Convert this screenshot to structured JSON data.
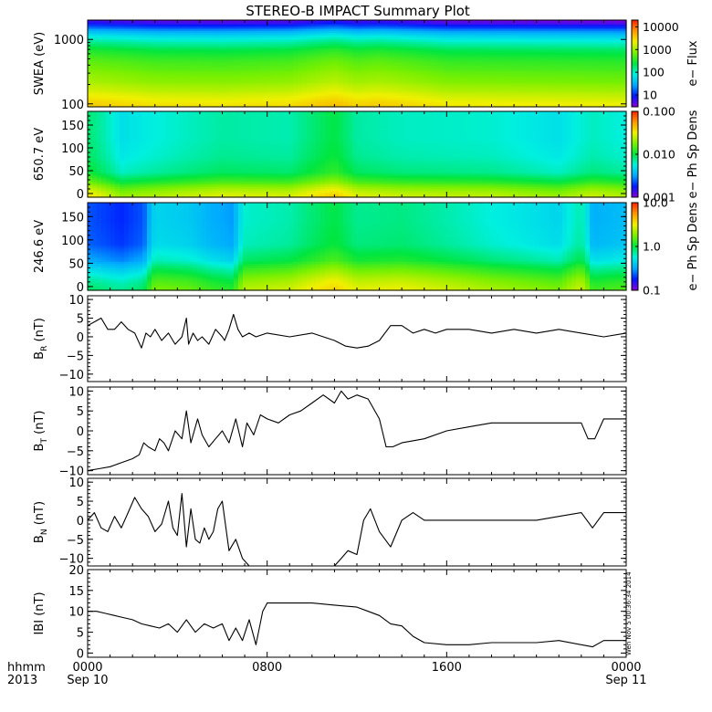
{
  "title": "STEREO-B IMPACT Summary Plot",
  "stamp": "Wen Nov 5 00:36:34 2014",
  "time_axis": {
    "row_label_1": "hhmm",
    "row_label_2": "2013",
    "ticks": [
      {
        "hours": 0,
        "time": "0000",
        "date": "Sep 10"
      },
      {
        "hours": 8,
        "time": "0800",
        "date": ""
      },
      {
        "hours": 16,
        "time": "1600",
        "date": ""
      },
      {
        "hours": 24,
        "time": "0000",
        "date": "Sep 11"
      }
    ],
    "range_hours": [
      0,
      24
    ]
  },
  "colors": {
    "spectrum": [
      "#8a00d8",
      "#0018ff",
      "#00a8ff",
      "#00f0e0",
      "#00e640",
      "#7af000",
      "#f0f000",
      "#ff9800",
      "#ff2000"
    ]
  },
  "chart_data": [
    {
      "type": "heatmap",
      "name": "swea",
      "ylabel": "SWEA (eV)",
      "yscale": "log",
      "ylim": [
        90,
        2000
      ],
      "yticks": [
        {
          "v": 100,
          "label": "100"
        },
        {
          "v": 1000,
          "label": "1000"
        }
      ],
      "colorbar": {
        "label": "e− Flux",
        "scale": "log",
        "range": [
          3,
          20000
        ],
        "ticks": [
          {
            "v": 10,
            "label": "10"
          },
          {
            "v": 100,
            "label": "100"
          },
          {
            "v": 1000,
            "label": "1000"
          },
          {
            "v": 10000,
            "label": "10000"
          }
        ]
      },
      "profile": [
        {
          "v": 100,
          "z": 2600
        },
        {
          "v": 120,
          "z": 2000
        },
        {
          "v": 160,
          "z": 1300
        },
        {
          "v": 220,
          "z": 850
        },
        {
          "v": 350,
          "z": 550
        },
        {
          "v": 550,
          "z": 330
        },
        {
          "v": 800,
          "z": 150
        },
        {
          "v": 1000,
          "z": 80
        },
        {
          "v": 1250,
          "z": 35
        },
        {
          "v": 1500,
          "z": 14
        },
        {
          "v": 1750,
          "z": 6
        },
        {
          "v": 2000,
          "z": 4
        }
      ],
      "time_modulation": [
        {
          "h": 0,
          "f": 1.3
        },
        {
          "h": 1,
          "f": 1.2
        },
        {
          "h": 3,
          "f": 1.0
        },
        {
          "h": 6,
          "f": 0.95
        },
        {
          "h": 9,
          "f": 1.05
        },
        {
          "h": 11,
          "f": 1.5
        },
        {
          "h": 12,
          "f": 1.2
        },
        {
          "h": 13,
          "f": 1.3
        },
        {
          "h": 16,
          "f": 0.9
        },
        {
          "h": 20,
          "f": 0.85
        },
        {
          "h": 24,
          "f": 0.8
        }
      ]
    },
    {
      "type": "heatmap",
      "name": "pad650",
      "ylabel": "650.7 eV",
      "yscale": "linear",
      "ylim": [
        -8,
        180
      ],
      "yticks": [
        {
          "v": 0,
          "label": "0"
        },
        {
          "v": 50,
          "label": "50"
        },
        {
          "v": 100,
          "label": "100"
        },
        {
          "v": 150,
          "label": "150"
        }
      ],
      "colorbar": {
        "label": "e− Ph Sp Dens",
        "scale": "log",
        "range": [
          0.001,
          0.1
        ],
        "ticks": [
          {
            "v": 0.001,
            "label": "0.001"
          },
          {
            "v": 0.01,
            "label": "0.010"
          },
          {
            "v": 0.1,
            "label": "0.100"
          }
        ]
      },
      "profile": [
        {
          "v": -8,
          "z": 0.03
        },
        {
          "v": 10,
          "z": 0.022
        },
        {
          "v": 25,
          "z": 0.014
        },
        {
          "v": 45,
          "z": 0.009
        },
        {
          "v": 80,
          "z": 0.0075
        },
        {
          "v": 120,
          "z": 0.007
        },
        {
          "v": 180,
          "z": 0.007
        }
      ],
      "time_modulation": [
        {
          "h": 0,
          "f": 1.2
        },
        {
          "h": 1.5,
          "f": 0.7
        },
        {
          "h": 3,
          "f": 0.8
        },
        {
          "h": 6,
          "f": 1.0
        },
        {
          "h": 9,
          "f": 0.95
        },
        {
          "h": 11,
          "f": 1.4
        },
        {
          "h": 12,
          "f": 1.0
        },
        {
          "h": 14,
          "f": 0.9
        },
        {
          "h": 18,
          "f": 0.85
        },
        {
          "h": 21,
          "f": 0.7
        },
        {
          "h": 22.5,
          "f": 0.9
        },
        {
          "h": 24,
          "f": 0.8
        }
      ]
    },
    {
      "type": "heatmap",
      "name": "pad246",
      "ylabel": "246.6 eV",
      "yscale": "linear",
      "ylim": [
        -8,
        180
      ],
      "yticks": [
        {
          "v": 0,
          "label": "0"
        },
        {
          "v": 50,
          "label": "50"
        },
        {
          "v": 100,
          "label": "100"
        },
        {
          "v": 150,
          "label": "150"
        }
      ],
      "colorbar": {
        "label": "e− Ph Sp Dens",
        "scale": "log",
        "range": [
          0.1,
          10
        ],
        "ticks": [
          {
            "v": 0.1,
            "label": "0.1"
          },
          {
            "v": 1,
            "label": "1.0"
          },
          {
            "v": 10,
            "label": "10.0"
          }
        ]
      },
      "profile": [
        {
          "v": -8,
          "z": 3.0
        },
        {
          "v": 10,
          "z": 2.5
        },
        {
          "v": 30,
          "z": 1.8
        },
        {
          "v": 55,
          "z": 1.1
        },
        {
          "v": 90,
          "z": 0.8
        },
        {
          "v": 140,
          "z": 0.75
        },
        {
          "v": 180,
          "z": 0.75
        }
      ],
      "time_modulation": [
        {
          "h": 0,
          "f": 0.3
        },
        {
          "h": 1.5,
          "f": 0.25
        },
        {
          "h": 2.5,
          "f": 0.3
        },
        {
          "h": 3,
          "f": 0.6
        },
        {
          "h": 4.5,
          "f": 0.55
        },
        {
          "h": 5.5,
          "f": 0.45
        },
        {
          "h": 6.5,
          "f": 0.4
        },
        {
          "h": 7,
          "f": 0.8
        },
        {
          "h": 9,
          "f": 0.9
        },
        {
          "h": 11,
          "f": 1.3
        },
        {
          "h": 12,
          "f": 1.0
        },
        {
          "h": 14,
          "f": 1.05
        },
        {
          "h": 18,
          "f": 0.75
        },
        {
          "h": 21,
          "f": 0.6
        },
        {
          "h": 22,
          "f": 0.9
        },
        {
          "h": 22.5,
          "f": 0.45
        },
        {
          "h": 24,
          "f": 0.5
        }
      ]
    },
    {
      "type": "line",
      "name": "br",
      "ylabel_main": "B",
      "ylabel_sub": "R",
      "ylabel_unit": " (nT)",
      "ylim": [
        -12,
        11
      ],
      "yticks": [
        {
          "v": -10,
          "label": "−10"
        },
        {
          "v": -5,
          "label": "−5"
        },
        {
          "v": 0,
          "label": "0"
        },
        {
          "v": 5,
          "label": "5"
        },
        {
          "v": 10,
          "label": "10"
        }
      ],
      "x": [
        0,
        0.3,
        0.6,
        0.9,
        1.2,
        1.5,
        1.8,
        2.1,
        2.4,
        2.6,
        2.8,
        3.0,
        3.3,
        3.6,
        3.9,
        4.2,
        4.4,
        4.5,
        4.7,
        4.9,
        5.1,
        5.4,
        5.7,
        6.0,
        6.1,
        6.3,
        6.5,
        6.7,
        6.9,
        7.2,
        7.5,
        8,
        9,
        10,
        11,
        11.5,
        12,
        12.5,
        13,
        13.5,
        14,
        14.5,
        15,
        15.5,
        16,
        17,
        18,
        19,
        20,
        21,
        22,
        23,
        24
      ],
      "values": [
        3,
        4,
        5,
        2,
        2,
        4,
        2,
        1,
        -3,
        1,
        0,
        2,
        -1,
        1,
        -2,
        0,
        5,
        -2,
        1,
        -1,
        0,
        -2,
        2,
        0,
        -1,
        2,
        6,
        2,
        0,
        1,
        0,
        1,
        0,
        1,
        -1,
        -2.5,
        -3,
        -2.5,
        -1,
        3,
        3,
        1,
        2,
        1,
        2,
        2,
        1,
        2,
        1,
        2,
        1,
        0,
        1
      ]
    },
    {
      "type": "line",
      "name": "bt",
      "ylabel_main": "B",
      "ylabel_sub": "T",
      "ylabel_unit": " (nT)",
      "ylim": [
        -11,
        11
      ],
      "yticks": [
        {
          "v": -10,
          "label": "−10"
        },
        {
          "v": -5,
          "label": "−5"
        },
        {
          "v": 0,
          "label": "0"
        },
        {
          "v": 5,
          "label": "5"
        },
        {
          "v": 10,
          "label": "10"
        }
      ],
      "x": [
        0,
        0.5,
        1,
        1.5,
        2,
        2.3,
        2.5,
        2.7,
        3,
        3.2,
        3.4,
        3.6,
        3.9,
        4.2,
        4.4,
        4.6,
        4.9,
        5.1,
        5.4,
        5.7,
        6.0,
        6.3,
        6.6,
        6.9,
        7.1,
        7.4,
        7.7,
        8,
        8.5,
        9,
        9.5,
        10,
        10.5,
        11,
        11.3,
        11.6,
        12,
        12.5,
        13,
        13.3,
        13.6,
        14,
        15,
        16,
        17,
        18,
        19,
        20,
        21,
        22,
        22.3,
        22.6,
        23,
        23.5,
        24
      ],
      "values": [
        -10,
        -9.5,
        -9,
        -8,
        -7,
        -6,
        -3,
        -4,
        -5,
        -2,
        -3,
        -5,
        0,
        -2,
        5,
        -3,
        3,
        -1,
        -4,
        -2,
        0,
        -3,
        3,
        -4,
        2,
        -1,
        4,
        3,
        2,
        4,
        5,
        7,
        9,
        7,
        10,
        8,
        9,
        8,
        3,
        -4,
        -4,
        -3,
        -2,
        0,
        1,
        2,
        2,
        2,
        2,
        2,
        -2,
        -2,
        3,
        3,
        3
      ]
    },
    {
      "type": "line",
      "name": "bn",
      "ylabel_main": "B",
      "ylabel_sub": "N",
      "ylabel_unit": " (nT)",
      "ylim": [
        -12,
        11
      ],
      "yticks": [
        {
          "v": -10,
          "label": "−10"
        },
        {
          "v": -5,
          "label": "−5"
        },
        {
          "v": 0,
          "label": "0"
        },
        {
          "v": 5,
          "label": "5"
        },
        {
          "v": 10,
          "label": "10"
        }
      ],
      "x": [
        0,
        0.3,
        0.6,
        0.9,
        1.2,
        1.5,
        1.8,
        2.1,
        2.4,
        2.7,
        3.0,
        3.3,
        3.6,
        3.8,
        4.0,
        4.2,
        4.4,
        4.6,
        4.8,
        5.0,
        5.2,
        5.4,
        5.6,
        5.8,
        6.0,
        6.3,
        6.6,
        6.9,
        7.2,
        7.5,
        7.8,
        8.0,
        8.5,
        9,
        9.5,
        10,
        10.5,
        11,
        11.3,
        11.6,
        12,
        12.3,
        12.6,
        13,
        13.5,
        14,
        14.5,
        15,
        16,
        17,
        18,
        19,
        20,
        21,
        22,
        22.5,
        23,
        23.5,
        24
      ],
      "values": [
        0,
        2,
        -2,
        -3,
        1,
        -2,
        2,
        6,
        3,
        1,
        -3,
        -1,
        5,
        -2,
        -4,
        7,
        -7,
        3,
        -5,
        -6,
        -2,
        -5,
        -3,
        3,
        5,
        -8,
        -5,
        -10,
        -13,
        -13,
        -13,
        -13,
        -13,
        -13,
        -13,
        -13,
        -13,
        -13,
        -10,
        -8,
        -9,
        0,
        3,
        -3,
        -7,
        0,
        2,
        0,
        0,
        0,
        0,
        0,
        0,
        1,
        2,
        -2,
        2,
        2,
        2
      ]
    },
    {
      "type": "line",
      "name": "bmag",
      "ylabel_main": "IBI",
      "ylabel_sub": "",
      "ylabel_unit": " (nT)",
      "ylim": [
        -1,
        20
      ],
      "yticks": [
        {
          "v": 0,
          "label": "0"
        },
        {
          "v": 5,
          "label": "5"
        },
        {
          "v": 10,
          "label": "10"
        },
        {
          "v": 15,
          "label": "15"
        },
        {
          "v": 20,
          "label": "20"
        }
      ],
      "x": [
        0,
        0.4,
        0.8,
        1.2,
        1.6,
        2.0,
        2.4,
        2.8,
        3.2,
        3.6,
        4.0,
        4.4,
        4.8,
        5.2,
        5.6,
        6.0,
        6.3,
        6.6,
        6.9,
        7.2,
        7.5,
        7.8,
        8,
        9,
        10,
        11,
        12,
        12.5,
        13,
        13.5,
        14,
        14.5,
        15,
        16,
        17,
        18,
        19,
        20,
        21,
        22,
        22.5,
        23,
        24
      ],
      "values": [
        10,
        10,
        9.5,
        9,
        8.5,
        8,
        7,
        6.5,
        6,
        7,
        5,
        8,
        5,
        7,
        6,
        7,
        3,
        6,
        3,
        8,
        2,
        10,
        12,
        12,
        12,
        11.5,
        11,
        10,
        9,
        7,
        6.5,
        4,
        2.5,
        2,
        2,
        2.5,
        2.5,
        2.5,
        3,
        2,
        1.5,
        3,
        3
      ]
    }
  ]
}
